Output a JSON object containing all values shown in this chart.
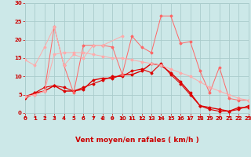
{
  "x": [
    0,
    1,
    2,
    3,
    4,
    5,
    6,
    7,
    8,
    9,
    10,
    11,
    12,
    13,
    14,
    15,
    16,
    17,
    18,
    19,
    20,
    21,
    22,
    23
  ],
  "lines": [
    {
      "color": "#DD0000",
      "values": [
        4.0,
        5.5,
        6.0,
        7.5,
        6.0,
        6.0,
        6.5,
        9.0,
        9.5,
        9.5,
        10.5,
        10.5,
        11.5,
        13.5,
        13.0,
        11.0,
        8.5,
        5.5,
        2.0,
        1.5,
        1.0,
        0.5,
        1.5,
        1.5
      ],
      "marker": "D",
      "markersize": 1.5,
      "linewidth": 1.0
    },
    {
      "color": "#DD0000",
      "values": [
        4.5,
        5.5,
        7.0,
        7.5,
        7.0,
        6.0,
        7.0,
        8.0,
        9.0,
        10.0,
        10.0,
        11.5,
        12.0,
        11.0,
        13.5,
        10.5,
        8.0,
        5.0,
        2.0,
        1.0,
        0.5,
        0.5,
        1.0,
        2.0
      ],
      "marker": "D",
      "markersize": 1.5,
      "linewidth": 0.8
    },
    {
      "color": "#FF6666",
      "values": [
        4.5,
        5.0,
        6.0,
        23.5,
        13.0,
        5.5,
        18.5,
        18.5,
        18.5,
        18.0,
        10.5,
        21.0,
        18.0,
        16.5,
        26.5,
        26.5,
        19.0,
        19.5,
        11.5,
        5.5,
        12.5,
        4.0,
        3.5,
        3.5
      ],
      "marker": "D",
      "markersize": 1.5,
      "linewidth": 0.7
    },
    {
      "color": "#FFAAAA",
      "values": [
        14.5,
        13.0,
        18.0,
        23.5,
        13.0,
        16.0,
        15.0,
        18.5,
        18.5,
        null,
        21.0,
        null,
        null,
        null,
        null,
        null,
        null,
        null,
        null,
        null,
        null,
        null,
        null,
        null
      ],
      "marker": "D",
      "markersize": 1.5,
      "linewidth": 0.7
    },
    {
      "color": "#FFAAAA",
      "values": [
        4.5,
        5.0,
        6.0,
        16.0,
        16.5,
        16.5,
        16.5,
        16.0,
        15.5,
        15.0,
        15.0,
        14.5,
        14.0,
        13.5,
        13.0,
        12.0,
        11.0,
        10.0,
        8.5,
        7.0,
        6.0,
        5.0,
        4.0,
        3.5
      ],
      "marker": "D",
      "markersize": 1.5,
      "linewidth": 0.7
    }
  ],
  "xlabel": "Vent moyen/en rafales ( km/h )",
  "ylim": [
    0,
    30
  ],
  "xlim": [
    0,
    23
  ],
  "yticks": [
    0,
    5,
    10,
    15,
    20,
    25,
    30
  ],
  "xticks": [
    0,
    1,
    2,
    3,
    4,
    5,
    6,
    7,
    8,
    9,
    10,
    11,
    12,
    13,
    14,
    15,
    16,
    17,
    18,
    19,
    20,
    21,
    22,
    23
  ],
  "bg_color": "#cce8e8",
  "grid_color": "#aacccc",
  "text_color": "#CC0000",
  "xlabel_fontsize": 6.5,
  "tick_fontsize": 5.0
}
